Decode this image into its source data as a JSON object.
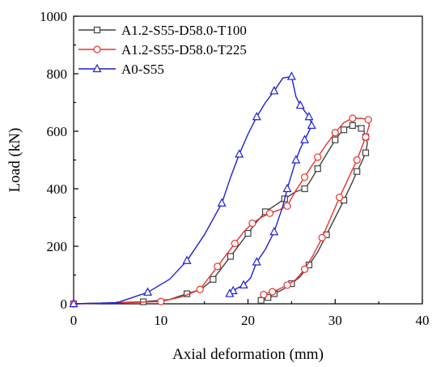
{
  "chart_data": {
    "type": "line",
    "title": "",
    "xlabel": "Axial deformation (mm)",
    "ylabel": "Load (kN)",
    "xlim": [
      0,
      40
    ],
    "ylim": [
      0,
      1000
    ],
    "xticks": [
      "0",
      "10",
      "20",
      "30",
      "40"
    ],
    "yticks": [
      "0",
      "200",
      "400",
      "600",
      "800",
      "1000"
    ],
    "grid": false,
    "legend_position": "top-left",
    "series": [
      {
        "name": "A1.2-S55-D58.0-T100",
        "color": "#404040",
        "marker": "square",
        "x": [
          0,
          4,
          8,
          11,
          13,
          14.6,
          16,
          17,
          18,
          19,
          20,
          21,
          22,
          23,
          24.2,
          25.5,
          26.5,
          27,
          28,
          29,
          30,
          30.5,
          31,
          31.5,
          32,
          32.5,
          33,
          33.3,
          33.5,
          33.7,
          33.5,
          33,
          32.5,
          32,
          31,
          30,
          29,
          28,
          27,
          26,
          25,
          24,
          23,
          22.6,
          22.3,
          21.8,
          21.5
        ],
        "y": [
          0,
          3,
          7,
          15,
          35,
          50,
          85,
          125,
          165,
          205,
          245,
          285,
          320,
          340,
          365,
          390,
          400,
          420,
          470,
          520,
          570,
          590,
          605,
          615,
          620,
          618,
          610,
          600,
          580,
          560,
          525,
          490,
          460,
          425,
          360,
          300,
          240,
          180,
          135,
          95,
          70,
          50,
          35,
          25,
          22,
          17,
          12
        ]
      },
      {
        "name": "A1.2-S55-D58.0-T225",
        "color": "#e8312d",
        "marker": "circle",
        "x": [
          0,
          5,
          10,
          12.5,
          14.5,
          15.5,
          16.5,
          17.5,
          18.5,
          19.5,
          20.5,
          21.5,
          22.5,
          23.5,
          24.5,
          25.5,
          26.5,
          27,
          28,
          29,
          30,
          31,
          32,
          33,
          33.8,
          33.9,
          33.5,
          33,
          32.5,
          31.5,
          30.5,
          29.5,
          28.5,
          27.5,
          26.5,
          25.5,
          24.5,
          23.5,
          22.8,
          22.3,
          21.8
        ],
        "y": [
          0,
          3,
          8,
          25,
          50,
          90,
          130,
          170,
          210,
          250,
          280,
          300,
          315,
          325,
          340,
          395,
          440,
          465,
          510,
          555,
          595,
          630,
          645,
          645,
          640,
          620,
          580,
          540,
          500,
          435,
          370,
          300,
          230,
          170,
          120,
          85,
          65,
          50,
          42,
          38,
          32
        ]
      },
      {
        "name": "A0-S55",
        "color": "#1f1fd4",
        "marker": "triangle",
        "x": [
          0,
          5,
          8.5,
          11,
          13,
          15,
          17,
          18,
          19,
          20,
          21,
          22,
          23,
          24,
          25,
          25.5,
          26,
          26.5,
          27,
          27.2,
          27.3,
          27,
          26.5,
          26,
          25.5,
          25,
          24.5,
          24,
          23,
          22,
          21,
          20.3,
          19.5,
          18.8,
          18.3,
          17.9
        ],
        "y": [
          0,
          4,
          40,
          85,
          150,
          240,
          350,
          440,
          520,
          590,
          650,
          700,
          740,
          785,
          790,
          720,
          690,
          670,
          650,
          635,
          620,
          600,
          570,
          540,
          500,
          450,
          400,
          340,
          250,
          190,
          145,
          90,
          65,
          55,
          45,
          35
        ]
      }
    ]
  }
}
